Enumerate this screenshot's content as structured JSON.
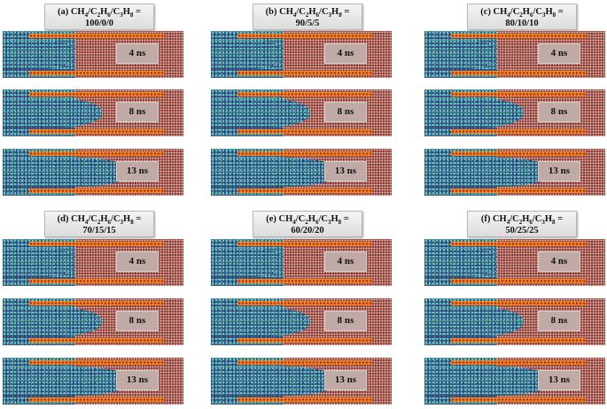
{
  "panels": [
    {
      "letter": "(a)",
      "composition": "100/0/0"
    },
    {
      "letter": "(b)",
      "composition": "90/5/5"
    },
    {
      "letter": "(c)",
      "composition": "80/10/10"
    },
    {
      "letter": "(d)",
      "composition": "70/15/15"
    },
    {
      "letter": "(e)",
      "composition": "60/20/20"
    },
    {
      "letter": "(f)",
      "composition": "50/25/25"
    }
  ],
  "snapshots": [
    {
      "time": "4 ns",
      "gas_fraction": 0.4
    },
    {
      "time": "8 ns",
      "gas_fraction": 0.55
    },
    {
      "time": "13 ns",
      "gas_fraction": 0.72
    }
  ],
  "colors": {
    "liquid": "#8f4a40",
    "gas": "#2d4f6a",
    "wall": "#ef8a1e"
  }
}
